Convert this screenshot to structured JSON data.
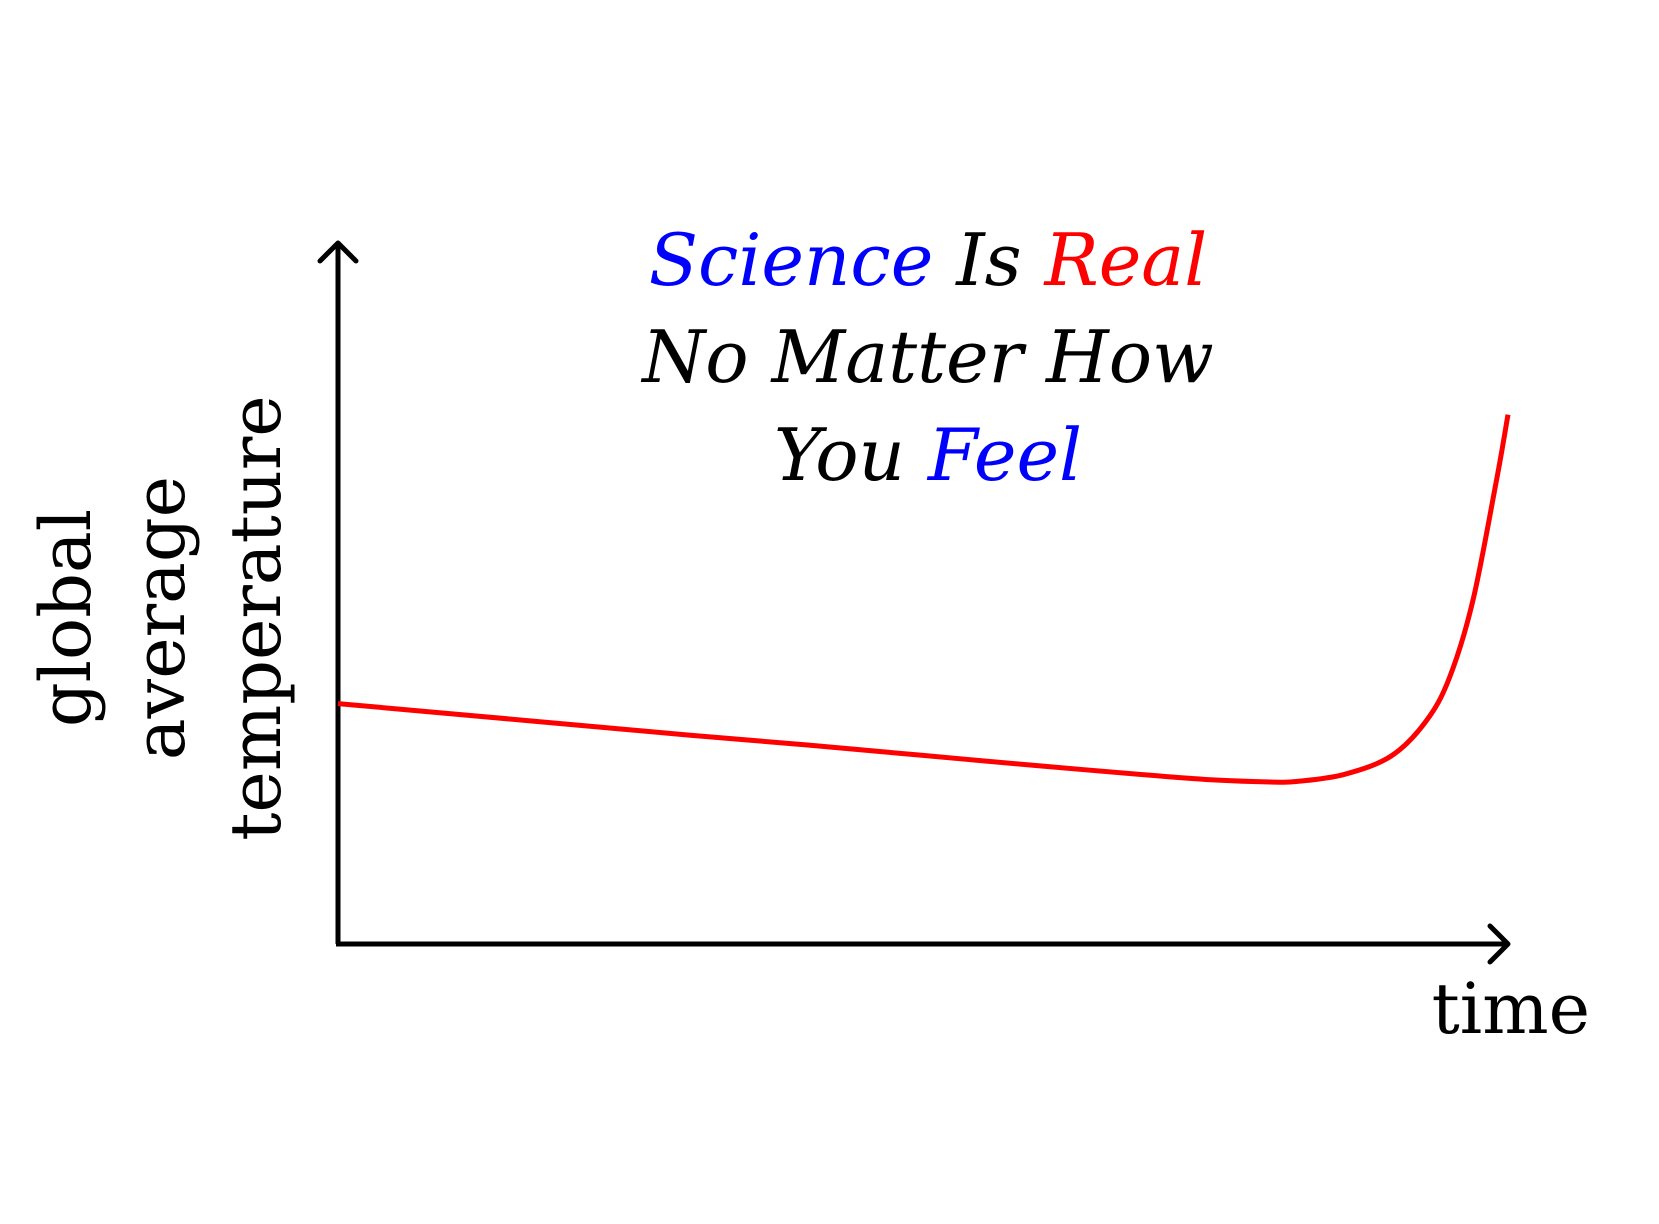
{
  "chart_data": {
    "type": "line",
    "title_lines": [
      [
        {
          "text": "Science",
          "color": "#0000ff"
        },
        {
          "text": " Is ",
          "color": "#000000"
        },
        {
          "text": "Real",
          "color": "#ff0000"
        }
      ],
      [
        {
          "text": "No Matter How",
          "color": "#000000"
        }
      ],
      [
        {
          "text": "You ",
          "color": "#000000"
        },
        {
          "text": "Feel",
          "color": "#0000ff"
        }
      ]
    ],
    "xlabel": "time",
    "ylabel_lines": [
      "global",
      "average",
      "temperature"
    ],
    "x_ticks_shown": false,
    "y_ticks_shown": false,
    "grid": false,
    "xlim": [
      0,
      1
    ],
    "ylim": [
      0,
      1
    ],
    "series": [
      {
        "color": "#ff0000",
        "x": [
          0.0,
          0.1,
          0.2,
          0.3,
          0.4,
          0.5,
          0.6,
          0.7,
          0.75,
          0.8,
          0.82,
          0.86,
          0.9,
          0.93,
          0.95,
          0.97,
          0.99,
          1.0
        ],
        "y": [
          0.343,
          0.328,
          0.313,
          0.298,
          0.284,
          0.269,
          0.254,
          0.24,
          0.234,
          0.231,
          0.232,
          0.242,
          0.268,
          0.318,
          0.38,
          0.49,
          0.66,
          0.755
        ]
      }
    ]
  }
}
